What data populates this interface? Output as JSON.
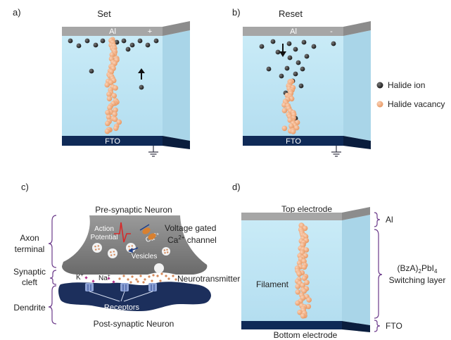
{
  "panels": {
    "a": {
      "letter": "a)",
      "title": "Set",
      "top_electrode": "Al",
      "polarity": "+",
      "bottom_electrode": "FTO"
    },
    "b": {
      "letter": "b)",
      "title": "Reset",
      "top_electrode": "Al",
      "polarity": "-",
      "bottom_electrode": "FTO"
    },
    "c": {
      "letter": "c)",
      "pre_neuron": "Pre-synaptic Neuron",
      "post_neuron": "Post-synaptic Neuron",
      "action_potential": [
        "Action",
        "Potential"
      ],
      "vesicles": "Vesicles",
      "calcium": "Ca",
      "calcium_sup": "2+",
      "channel_line1": "Voltage gated",
      "channel_line2_pre": "Ca",
      "channel_line2_sup": "2+",
      "channel_line2_post": " channel",
      "neurotransmitter": "Neurotransmitter",
      "receptors": "Receptors",
      "potassium": "K",
      "potassium_sup": "+",
      "sodium": "Na",
      "sodium_sup": "+",
      "axon_terminal": [
        "Axon",
        "terminal"
      ],
      "synaptic_cleft": [
        "Synaptic",
        "cleft"
      ],
      "dendrite": "Dendrite"
    },
    "d": {
      "letter": "d)",
      "top_electrode": "Top electrode",
      "bottom_electrode": "Bottom electrode",
      "filament": "Filament",
      "al": "Al",
      "fto": "FTO",
      "layer_line1_pre": "(BzA)",
      "layer_line1_sub1": "2",
      "layer_line1_mid": "PbI",
      "layer_line1_sub2": "4",
      "layer_line2": "Switching layer"
    }
  },
  "legend": [
    {
      "label": "Halide ion",
      "color": "#2b2b2b"
    },
    {
      "label": "Halide vacancy",
      "color": "#f2ad85"
    }
  ],
  "colors": {
    "layer": "#bfe4f3",
    "top_electrode": "#a6a6a6",
    "bottom_electrode": "#0f2a57",
    "neuron_pre": "#7f7f7f",
    "neuron_post": "#1c2f5c",
    "bracket": "#6b3a8a"
  }
}
